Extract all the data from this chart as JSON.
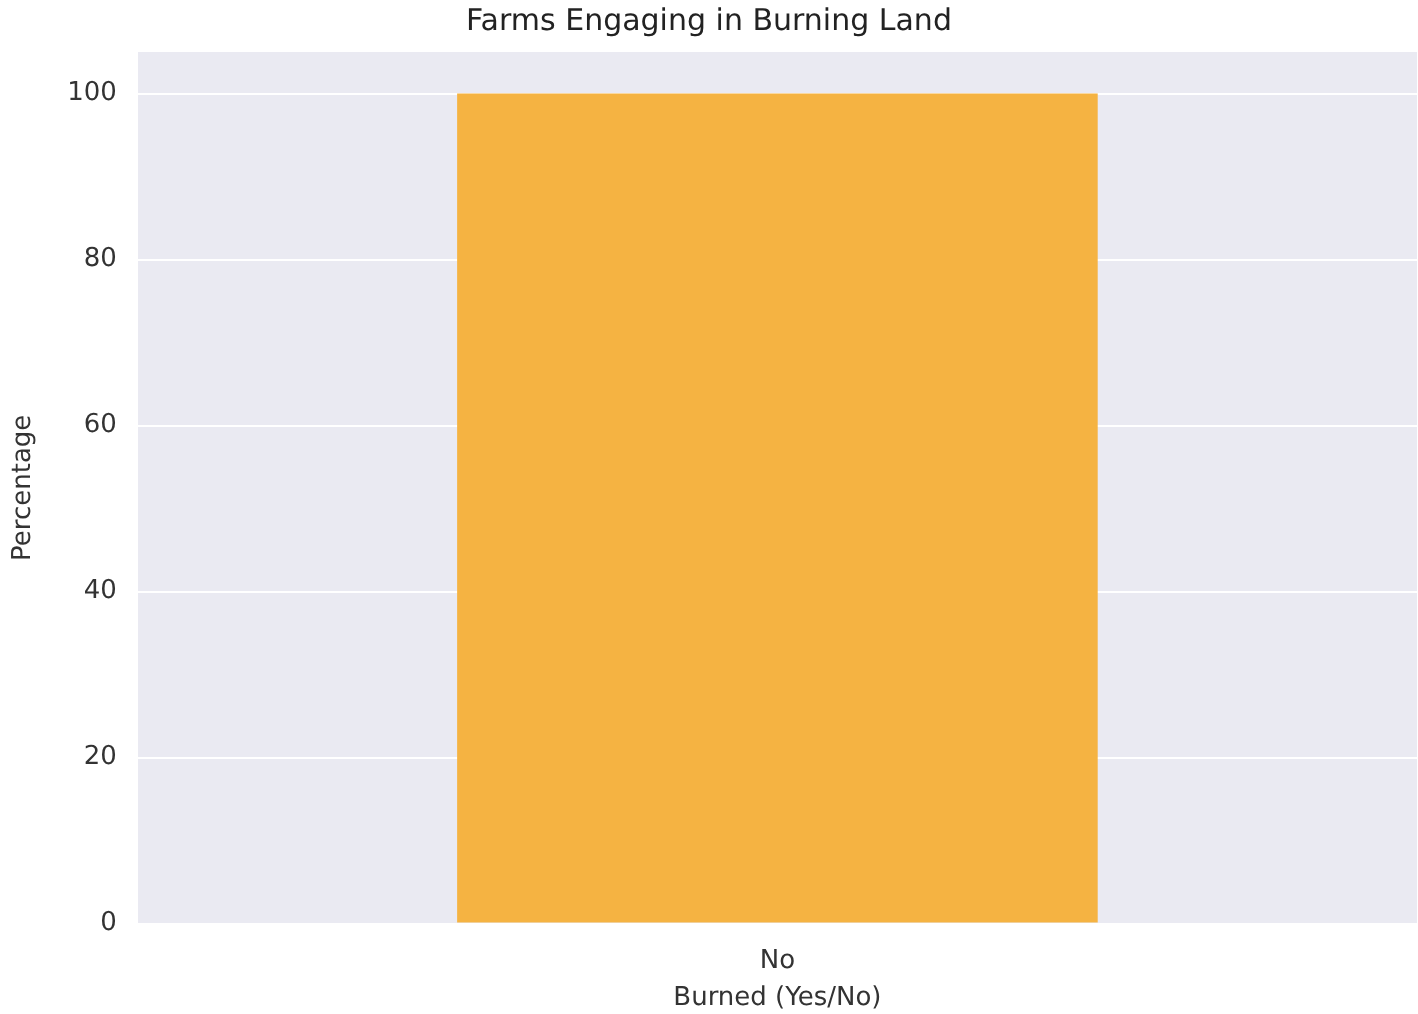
{
  "chart_data": {
    "type": "bar",
    "title": "Farms Engaging in Burning Land",
    "xlabel": "Burned (Yes/No)",
    "ylabel": "Percentage",
    "categories": [
      "No"
    ],
    "values": [
      100
    ],
    "color": "#f5b342",
    "ylim": [
      0,
      105
    ],
    "yticks": [
      0,
      20,
      40,
      60,
      80,
      100
    ],
    "grid": true
  }
}
